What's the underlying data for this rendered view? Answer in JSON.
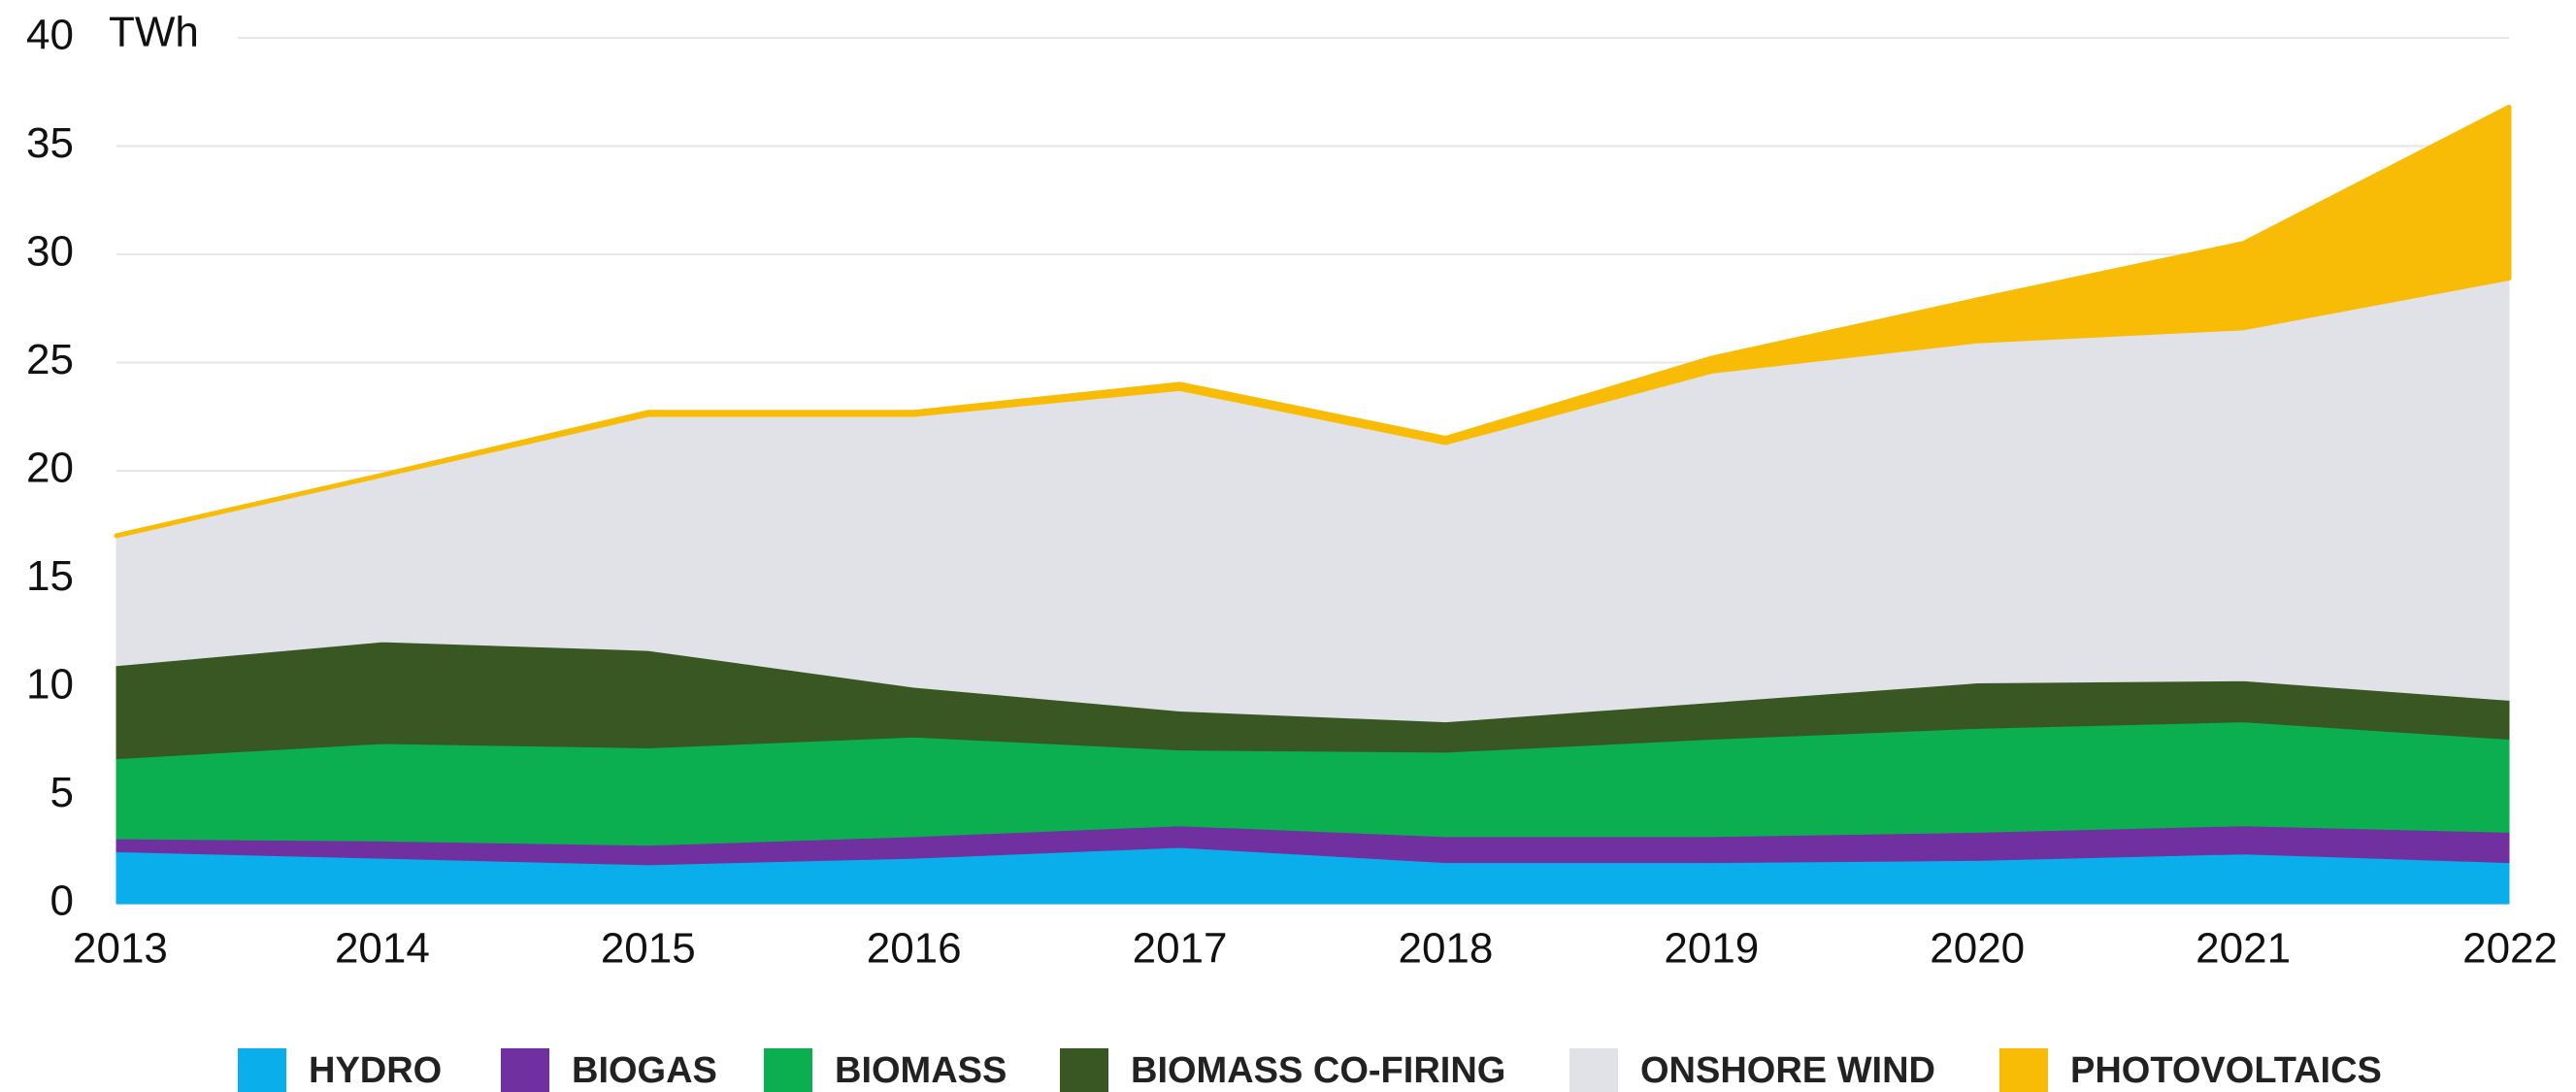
{
  "chart_data": {
    "type": "stacked_area",
    "y_label": "TWh",
    "categories": [
      "2013",
      "2014",
      "2015",
      "2016",
      "2017",
      "2018",
      "2019",
      "2020",
      "2021",
      "2022"
    ],
    "series": [
      {
        "name": "HYDRO",
        "color": "#0aaeeb",
        "values": [
          2.4,
          2.1,
          1.8,
          2.1,
          2.6,
          1.9,
          1.9,
          2.0,
          2.3,
          1.9
        ]
      },
      {
        "name": "BIOGAS",
        "color": "#7030a0",
        "values": [
          0.6,
          0.8,
          0.9,
          1.0,
          1.0,
          1.2,
          1.2,
          1.3,
          1.3,
          1.4
        ]
      },
      {
        "name": "BIOMASS",
        "color": "#0baf4f",
        "values": [
          3.7,
          4.5,
          4.5,
          4.6,
          3.5,
          3.9,
          4.5,
          4.8,
          4.8,
          4.3
        ]
      },
      {
        "name": "BIOMASS CO-FIRING",
        "color": "#385723",
        "values": [
          4.3,
          4.7,
          4.5,
          2.3,
          1.8,
          1.4,
          1.7,
          2.1,
          1.9,
          1.8
        ]
      },
      {
        "name": "ONSHORE WIND",
        "color": "#e1e2e8",
        "values": [
          6.0,
          7.7,
          10.9,
          12.6,
          14.9,
          12.9,
          15.3,
          15.8,
          16.3,
          19.5
        ]
      },
      {
        "name": "PHOTOVOLTAICS",
        "color": "#f8bc06",
        "values": [
          0,
          0,
          0.1,
          0.1,
          0.2,
          0.2,
          0.6,
          1.9,
          3.9,
          7.9
        ]
      }
    ],
    "ylim": [
      0,
      40
    ],
    "yticks": [
      0,
      5,
      10,
      15,
      20,
      25,
      30,
      35,
      40
    ],
    "grid": true
  }
}
